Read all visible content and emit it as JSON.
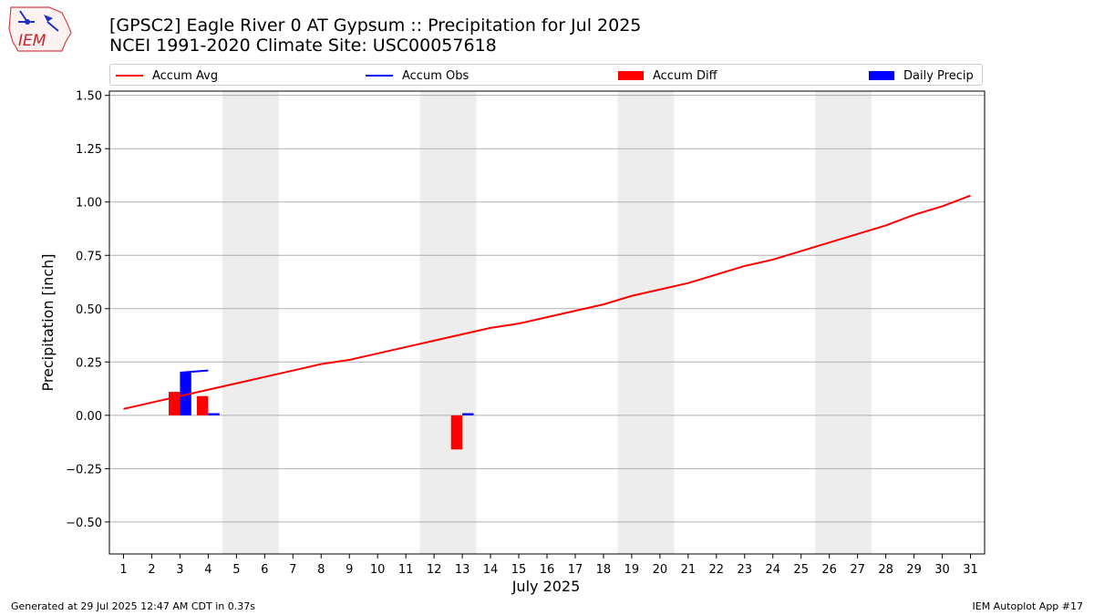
{
  "logo": {
    "text": "IEM"
  },
  "title": {
    "line1": "[GPSC2] Eagle River 0 AT Gypsum :: Precipitation for Jul 2025",
    "line2": "NCEI 1991-2020 Climate Site: USC00057618"
  },
  "footer": {
    "left": "Generated at 29 Jul 2025 12:47 AM CDT in 0.37s",
    "right": "IEM Autoplot App #17"
  },
  "colors": {
    "avg": "#ff0000",
    "obs": "#0000ff",
    "diff": "#ff0000",
    "daily": "#0000ff",
    "weekend": "#ededed",
    "grid": "#b0b0b0"
  },
  "chart_data": {
    "type": "bar",
    "xlabel": "July 2025",
    "ylabel": "Precipitation [inch]",
    "ylim": [
      -0.65,
      1.52
    ],
    "yticks": [
      -0.5,
      -0.25,
      0.0,
      0.25,
      0.5,
      0.75,
      1.0,
      1.25,
      1.5
    ],
    "ytick_labels": [
      "−0.50",
      "−0.25",
      "0.00",
      "0.25",
      "0.50",
      "0.75",
      "1.00",
      "1.25",
      "1.50"
    ],
    "xlim": [
      0.5,
      31.5
    ],
    "days": [
      1,
      2,
      3,
      4,
      5,
      6,
      7,
      8,
      9,
      10,
      11,
      12,
      13,
      14,
      15,
      16,
      17,
      18,
      19,
      20,
      21,
      22,
      23,
      24,
      25,
      26,
      27,
      28,
      29,
      30,
      31
    ],
    "grid": "horizontal",
    "legend_position": "top",
    "weekend_shading": [
      [
        5,
        6
      ],
      [
        12,
        13
      ],
      [
        19,
        20
      ],
      [
        26,
        27
      ]
    ],
    "series": [
      {
        "name": "Accum Avg",
        "kind": "line",
        "x": [
          1,
          2,
          3,
          4,
          5,
          6,
          7,
          8,
          9,
          10,
          11,
          12,
          13,
          14,
          15,
          16,
          17,
          18,
          19,
          20,
          21,
          22,
          23,
          24,
          25,
          26,
          27,
          28,
          29,
          30,
          31
        ],
        "values": [
          0.03,
          0.06,
          0.09,
          0.12,
          0.15,
          0.18,
          0.21,
          0.24,
          0.26,
          0.29,
          0.32,
          0.35,
          0.38,
          0.41,
          0.43,
          0.46,
          0.49,
          0.52,
          0.56,
          0.59,
          0.62,
          0.66,
          0.7,
          0.73,
          0.77,
          0.81,
          0.85,
          0.89,
          0.94,
          0.98,
          1.03
        ]
      },
      {
        "name": "Accum Obs",
        "kind": "line",
        "x": [
          3,
          4
        ],
        "values": [
          0.2,
          0.21
        ]
      },
      {
        "name": "Accum Diff",
        "kind": "bar",
        "x": [
          3,
          4,
          13
        ],
        "values": [
          0.11,
          0.09,
          -0.16
        ]
      },
      {
        "name": "Daily Precip",
        "kind": "bar",
        "x": [
          3,
          4,
          13
        ],
        "values": [
          0.2,
          0.01,
          0.01
        ]
      }
    ]
  }
}
